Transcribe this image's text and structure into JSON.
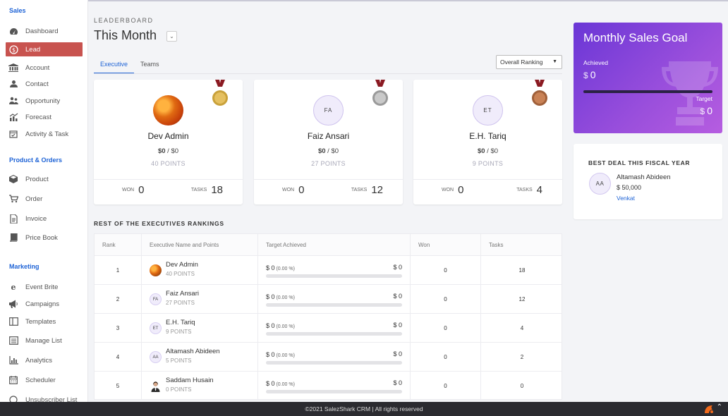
{
  "sidebar": {
    "sales_title": "Sales",
    "sales_items": [
      {
        "label": "Dashboard",
        "icon": "dashboard-icon"
      },
      {
        "label": "Lead",
        "icon": "dollar-icon"
      },
      {
        "label": "Account",
        "icon": "bank-icon"
      },
      {
        "label": "Contact",
        "icon": "contact-icon"
      },
      {
        "label": "Opportunity",
        "icon": "opportunity-icon"
      },
      {
        "label": "Forecast",
        "icon": "forecast-icon"
      },
      {
        "label": "Activity & Task",
        "icon": "calendar-check-icon"
      }
    ],
    "product_title": "Product & Orders",
    "product_items": [
      {
        "label": "Product",
        "icon": "box-icon"
      },
      {
        "label": "Order",
        "icon": "cart-icon"
      },
      {
        "label": "Invoice",
        "icon": "invoice-icon"
      },
      {
        "label": "Price Book",
        "icon": "book-icon"
      }
    ],
    "marketing_title": "Marketing",
    "marketing_items": [
      {
        "label": "Event Brite",
        "icon": "eventbrite-icon"
      },
      {
        "label": "Campaigns",
        "icon": "megaphone-icon"
      },
      {
        "label": "Templates",
        "icon": "template-icon"
      },
      {
        "label": "Manage List",
        "icon": "list-icon"
      },
      {
        "label": "Analytics",
        "icon": "bar-chart-icon"
      },
      {
        "label": "Scheduler",
        "icon": "calendar-icon"
      },
      {
        "label": "Unsubscriber List",
        "icon": "unsubscribe-icon"
      }
    ]
  },
  "header": {
    "section_label": "LEADERBOARD",
    "period": "This Month",
    "tabs": [
      "Executive",
      "Teams"
    ],
    "ranking_select": "Overall Ranking"
  },
  "podium": [
    {
      "name": "Dev Admin",
      "initials": "",
      "amount_won": "$0",
      "amount_target": " / $0",
      "points": "40 POINTS",
      "won_label": "WON",
      "won": "0",
      "tasks_label": "TASKS",
      "tasks": "18",
      "medal": "gold"
    },
    {
      "name": "Faiz Ansari",
      "initials": "FA",
      "amount_won": "$0",
      "amount_target": " / $0",
      "points": "27 POINTS",
      "won_label": "WON",
      "won": "0",
      "tasks_label": "TASKS",
      "tasks": "12",
      "medal": "silver"
    },
    {
      "name": "E.H. Tariq",
      "initials": "ET",
      "amount_won": "$0",
      "amount_target": " / $0",
      "points": "9 POINTS",
      "won_label": "WON",
      "won": "0",
      "tasks_label": "TASKS",
      "tasks": "4",
      "medal": "bronze"
    }
  ],
  "rankings": {
    "title": "REST OF THE EXECUTIVES RANKINGS",
    "headers": [
      "Rank",
      "Executive Name and Points",
      "Target Achieved",
      "Won",
      "Tasks"
    ],
    "rows": [
      {
        "rank": "1",
        "initials": "",
        "name": "Dev Admin",
        "points": "40 POINTS",
        "achieved": "$ 0",
        "pct": " (0.00 %)",
        "target": "$ 0",
        "won": "0",
        "tasks": "18"
      },
      {
        "rank": "2",
        "initials": "FA",
        "name": "Faiz Ansari",
        "points": "27 POINTS",
        "achieved": "$ 0",
        "pct": " (0.00 %)",
        "target": "$ 0",
        "won": "0",
        "tasks": "12"
      },
      {
        "rank": "3",
        "initials": "ET",
        "name": "E.H. Tariq",
        "points": "9 POINTS",
        "achieved": "$ 0",
        "pct": " (0.00 %)",
        "target": "$ 0",
        "won": "0",
        "tasks": "4"
      },
      {
        "rank": "4",
        "initials": "AA",
        "name": "Altamash Abideen",
        "points": "5 POINTS",
        "achieved": "$ 0",
        "pct": " (0.00 %)",
        "target": "$ 0",
        "won": "0",
        "tasks": "2"
      },
      {
        "rank": "5",
        "initials": "",
        "name": "Saddam Husain",
        "points": "0 POINTS",
        "achieved": "$ 0",
        "pct": " (0.00 %)",
        "target": "$ 0",
        "won": "0",
        "tasks": "0"
      }
    ]
  },
  "goal": {
    "title": "Monthly Sales Goal",
    "achieved_label": "Achieved",
    "achieved_currency": "$",
    "achieved_value": "0",
    "target_label": "Target",
    "target_currency": "$",
    "target_value": "0",
    "progress": 0
  },
  "best_deal": {
    "title": "BEST DEAL THIS FISCAL YEAR",
    "initials": "AA",
    "name": "Altamash Abideen",
    "amount": "$ 50,000",
    "owner": "Venkat"
  },
  "footer": {
    "copyright": "©2021 SalezShark CRM | All rights reserved"
  },
  "colors": {
    "accent": "#1e63d6",
    "active_nav": "#c8534f",
    "goal_gradient_start": "#6a36d6",
    "goal_gradient_end": "#b65de0"
  }
}
